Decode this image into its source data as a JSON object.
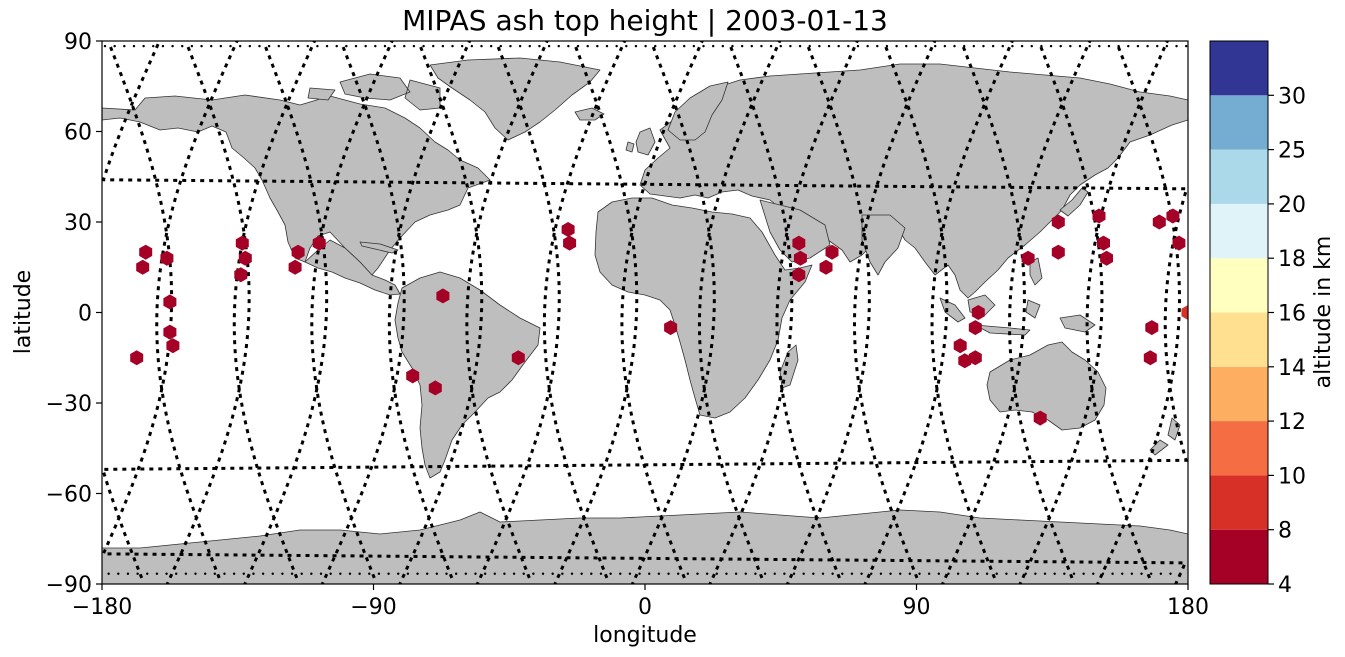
{
  "chart_data": {
    "type": "scatter",
    "title": "MIPAS ash top height | 2003-01-13",
    "xlabel": "longitude",
    "ylabel": "latitude",
    "xlim": [
      -180,
      180
    ],
    "ylim": [
      -90,
      90
    ],
    "x_ticks": [
      "−180",
      "−90",
      "0",
      "90",
      "180"
    ],
    "y_ticks": [
      "90",
      "60",
      "30",
      "0",
      "−30",
      "−60",
      "−90"
    ],
    "grid": false,
    "background_map": "world coastlines, land filled grey",
    "colors": {
      "land": "#bebebe",
      "coast": "#333333",
      "track": "#000000"
    },
    "colorbar": {
      "label": "altitude in km",
      "ticks": [
        "4",
        "8",
        "10",
        "12",
        "14",
        "16",
        "18",
        "20",
        "25",
        "30"
      ],
      "bounds": [
        4,
        8,
        10,
        12,
        14,
        16,
        18,
        20,
        25,
        30
      ],
      "colors": [
        "#a50026",
        "#d73027",
        "#f46d43",
        "#fdae61",
        "#fee090",
        "#ffffbf",
        "#e0f3f8",
        "#abd9e9",
        "#74add1",
        "#313695"
      ]
    },
    "series": [
      {
        "marker": "hexagon",
        "points": [
          [
            -168.5,
            -15
          ],
          [
            -166.5,
            15
          ],
          [
            -165.5,
            20
          ],
          [
            -158.5,
            18
          ],
          [
            -157.5,
            3.5
          ],
          [
            -157.5,
            -6.5
          ],
          [
            -156.5,
            -11
          ],
          [
            -133.5,
            23
          ],
          [
            -132.5,
            18
          ],
          [
            -134,
            12.5
          ],
          [
            -115,
            20
          ],
          [
            -116,
            15
          ],
          [
            -108,
            23
          ],
          [
            -77,
            -21
          ],
          [
            -69.5,
            -25
          ],
          [
            -67,
            5.5
          ],
          [
            -42,
            -15
          ],
          [
            -25.5,
            27.5
          ],
          [
            -25,
            23
          ],
          [
            8.5,
            -5
          ],
          [
            51,
            23
          ],
          [
            51.5,
            18
          ],
          [
            51,
            12.5
          ],
          [
            60,
            15
          ],
          [
            62,
            20
          ],
          [
            104.5,
            -11
          ],
          [
            106,
            -16
          ],
          [
            109.5,
            -5
          ],
          [
            109.5,
            -15
          ],
          [
            110.5,
            0
          ],
          [
            127,
            18
          ],
          [
            131,
            -35
          ],
          [
            137,
            30
          ],
          [
            137,
            20
          ],
          [
            150.5,
            32
          ],
          [
            152,
            23
          ],
          [
            153,
            18
          ],
          [
            168,
            -5
          ],
          [
            167.5,
            -15
          ],
          [
            170.5,
            30
          ],
          [
            175,
            32
          ],
          [
            177,
            23
          ]
        ],
        "values_km": [
          6,
          6,
          6,
          6,
          6,
          6,
          6,
          6,
          6,
          6,
          6,
          6,
          6,
          6,
          6,
          6,
          6,
          6,
          6,
          6,
          6,
          6,
          6,
          6,
          6,
          6,
          6,
          6,
          6,
          6,
          6,
          6,
          6,
          6,
          6,
          6,
          6,
          6,
          6,
          6,
          6,
          6
        ]
      },
      {
        "marker": "hexagon",
        "points": [
          [
            180,
            0
          ]
        ],
        "values_km": [
          9
        ]
      }
    ]
  }
}
